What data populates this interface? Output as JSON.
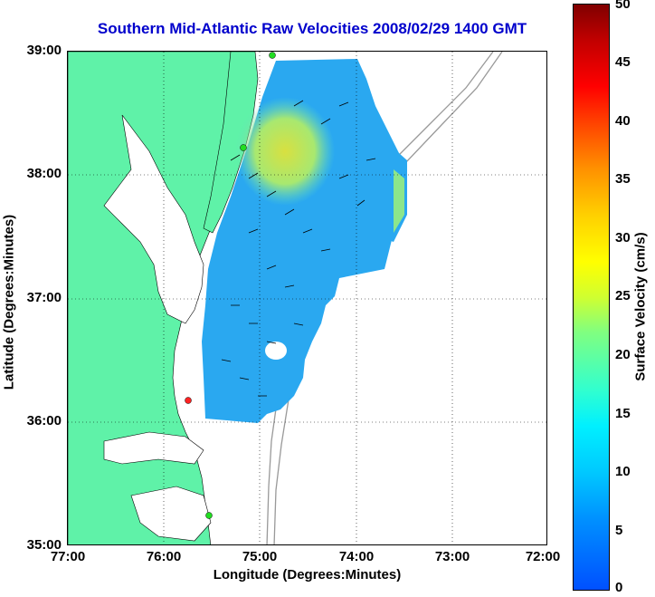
{
  "title": "Southern Mid-Atlantic Raw Velocities 2008/02/29 1400 GMT",
  "x_axis": {
    "label": "Longitude (Degrees:Minutes)",
    "ticks": [
      "77:00",
      "76:00",
      "75:00",
      "74:00",
      "73:00",
      "72:00"
    ]
  },
  "y_axis": {
    "label": "Latitude (Degrees:Minutes)",
    "ticks": [
      "39:00",
      "38:00",
      "37:00",
      "36:00",
      "35:00"
    ]
  },
  "colorbar": {
    "label": "Surface Velocity (cm/s)",
    "ticks": [
      "50",
      "45",
      "40",
      "35",
      "30",
      "25",
      "20",
      "15",
      "10",
      "5",
      "0"
    ],
    "range": [
      0,
      50
    ]
  },
  "colors": {
    "land": "#5ff2a8",
    "title": "#0000cc",
    "station_green": "#22dd22",
    "station_red": "#ff2222"
  },
  "map": {
    "lon_range": [
      -77,
      -72
    ],
    "lat_range": [
      35,
      39
    ],
    "grid": true
  }
}
